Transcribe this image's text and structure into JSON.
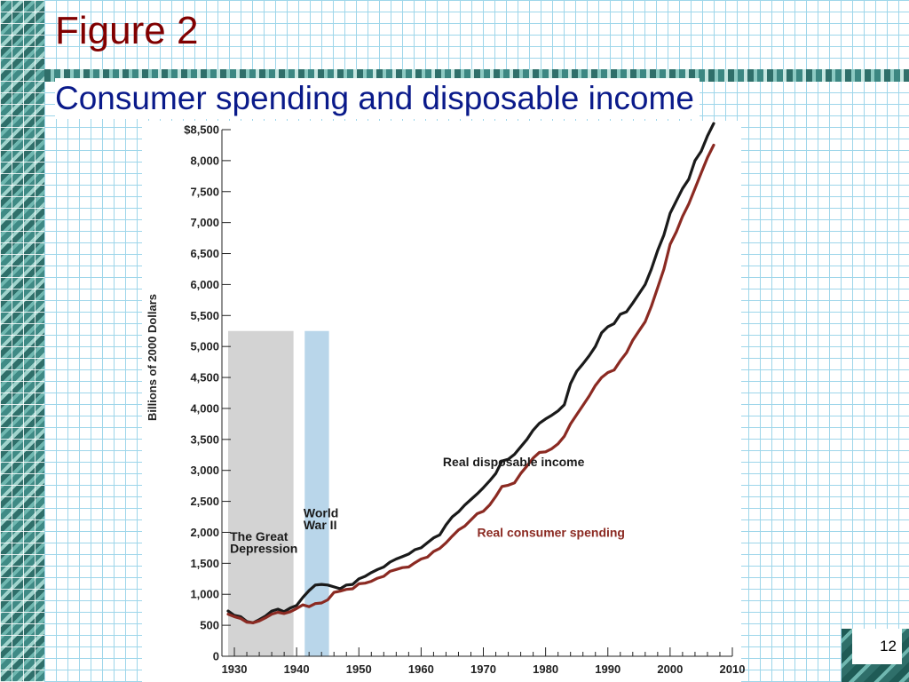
{
  "slide": {
    "title": "Figure 2",
    "subtitle": "Consumer spending and disposable income",
    "page_number": "12"
  },
  "colors": {
    "title": "#800000",
    "subtitle": "#0a1a8a",
    "income_line": "#1a1a1a",
    "spending_line": "#8b2a22",
    "depression_band": "#d3d3d3",
    "war_band": "#b9d6ea"
  },
  "chart_data": {
    "type": "line",
    "title": "",
    "xlabel": "",
    "ylabel": "Billions of 2000 Dollars",
    "xlim": [
      1928,
      2010
    ],
    "ylim": [
      0,
      8500
    ],
    "x_ticks": [
      1930,
      1940,
      1950,
      1960,
      1970,
      1980,
      1990,
      2000,
      2010
    ],
    "x_tick_labels": [
      "1930",
      "1940",
      "1950",
      "1960",
      "1970",
      "1980",
      "1990",
      "2000",
      "2010"
    ],
    "y_ticks": [
      0,
      500,
      1000,
      1500,
      2000,
      2500,
      3000,
      3500,
      4000,
      4500,
      5000,
      5500,
      6000,
      6500,
      7000,
      7500,
      8000,
      8500
    ],
    "y_tick_labels": [
      "0",
      "500",
      "1,000",
      "1,500",
      "2,000",
      "2,500",
      "3,000",
      "3,500",
      "4,000",
      "4,500",
      "5,000",
      "5,500",
      "6,000",
      "6,500",
      "7,000",
      "7,500",
      "8,000",
      "$8,500"
    ],
    "grid": false,
    "shaded_regions": [
      {
        "label": "The Great Depression",
        "start": 1929,
        "end": 1939.5,
        "top": 5250,
        "color": "#d3d3d3"
      },
      {
        "label": "World War II",
        "start": 1941.3,
        "end": 1945.2,
        "top": 5250,
        "color": "#b9d6ea"
      }
    ],
    "series": [
      {
        "name": "Real disposable income",
        "color": "#1a1a1a",
        "x": [
          1929,
          1930,
          1931,
          1932,
          1933,
          1934,
          1935,
          1936,
          1937,
          1938,
          1939,
          1940,
          1941,
          1942,
          1943,
          1944,
          1945,
          1946,
          1947,
          1948,
          1949,
          1950,
          1951,
          1952,
          1953,
          1954,
          1955,
          1956,
          1957,
          1958,
          1959,
          1960,
          1961,
          1962,
          1963,
          1964,
          1965,
          1966,
          1967,
          1968,
          1969,
          1970,
          1971,
          1972,
          1973,
          1974,
          1975,
          1976,
          1977,
          1978,
          1979,
          1980,
          1981,
          1982,
          1983,
          1984,
          1985,
          1986,
          1987,
          1988,
          1989,
          1990,
          1991,
          1992,
          1993,
          1994,
          1995,
          1996,
          1997,
          1998,
          1999,
          2000,
          2001,
          2002,
          2003,
          2004,
          2005,
          2006,
          2007
        ],
        "y": [
          730,
          660,
          640,
          560,
          540,
          590,
          650,
          730,
          760,
          720,
          780,
          820,
          950,
          1060,
          1150,
          1160,
          1150,
          1120,
          1090,
          1150,
          1160,
          1250,
          1290,
          1350,
          1400,
          1440,
          1520,
          1570,
          1610,
          1650,
          1720,
          1750,
          1830,
          1910,
          1960,
          2120,
          2250,
          2330,
          2440,
          2530,
          2620,
          2720,
          2830,
          2950,
          3150,
          3180,
          3260,
          3380,
          3500,
          3650,
          3760,
          3830,
          3890,
          3960,
          4060,
          4400,
          4600,
          4720,
          4850,
          5000,
          5220,
          5320,
          5370,
          5520,
          5560,
          5700,
          5850,
          6000,
          6250,
          6550,
          6800,
          7150,
          7350,
          7550,
          7700,
          8000,
          8150,
          8400,
          8600
        ]
      },
      {
        "name": "Real consumer spending",
        "color": "#8b2a22",
        "x": [
          1929,
          1930,
          1931,
          1932,
          1933,
          1934,
          1935,
          1936,
          1937,
          1938,
          1939,
          1940,
          1941,
          1942,
          1943,
          1944,
          1945,
          1946,
          1947,
          1948,
          1949,
          1950,
          1951,
          1952,
          1953,
          1954,
          1955,
          1956,
          1957,
          1958,
          1959,
          1960,
          1961,
          1962,
          1963,
          1964,
          1965,
          1966,
          1967,
          1968,
          1969,
          1970,
          1971,
          1972,
          1973,
          1974,
          1975,
          1976,
          1977,
          1978,
          1979,
          1980,
          1981,
          1982,
          1983,
          1984,
          1985,
          1986,
          1987,
          1988,
          1989,
          1990,
          1991,
          1992,
          1993,
          1994,
          1995,
          1996,
          1997,
          1998,
          1999,
          2000,
          2001,
          2002,
          2003,
          2004,
          2005,
          2006,
          2007
        ],
        "y": [
          680,
          640,
          610,
          550,
          540,
          570,
          620,
          680,
          710,
          690,
          720,
          770,
          830,
          800,
          850,
          860,
          910,
          1030,
          1050,
          1080,
          1090,
          1170,
          1180,
          1210,
          1260,
          1290,
          1370,
          1400,
          1430,
          1440,
          1510,
          1570,
          1600,
          1690,
          1740,
          1830,
          1940,
          2040,
          2100,
          2200,
          2300,
          2340,
          2440,
          2580,
          2740,
          2760,
          2800,
          2950,
          3070,
          3200,
          3290,
          3300,
          3350,
          3430,
          3550,
          3750,
          3900,
          4050,
          4200,
          4370,
          4500,
          4580,
          4620,
          4770,
          4900,
          5100,
          5250,
          5400,
          5650,
          5950,
          6250,
          6650,
          6850,
          7100,
          7300,
          7550,
          7800,
          8050,
          8250
        ]
      }
    ],
    "annotations": [
      {
        "text": "Real disposable income",
        "x": 1963.5,
        "y": 3070
      },
      {
        "text": "Real consumer spending",
        "x": 1969,
        "y": 1930
      },
      {
        "text": "World",
        "x": 1941.1,
        "y": 2240
      },
      {
        "text": "War II",
        "x": 1941.1,
        "y": 2050
      },
      {
        "text": "The Great",
        "x": 1929.3,
        "y": 1860
      },
      {
        "text": "Depression",
        "x": 1929.3,
        "y": 1670
      }
    ]
  }
}
